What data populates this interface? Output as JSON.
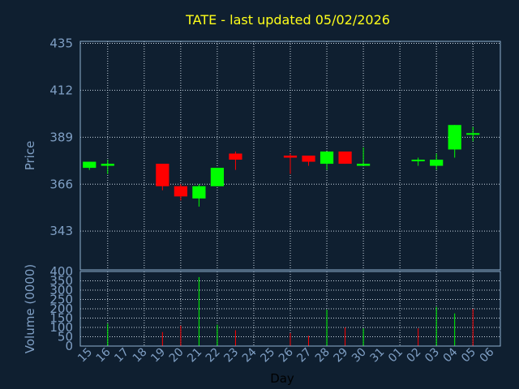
{
  "chart_data": {
    "type": "candlestick",
    "title": "TATE - last updated 05/02/2026",
    "xlabel": "Day",
    "ylabel_price": "Price",
    "ylabel_volume": "Volume (0000)",
    "x_ticks": [
      "15",
      "16",
      "17",
      "18",
      "19",
      "20",
      "21",
      "22",
      "23",
      "24",
      "25",
      "26",
      "27",
      "28",
      "29",
      "30",
      "31",
      "01",
      "02",
      "03",
      "04",
      "05",
      "06"
    ],
    "price_ticks": [
      343,
      366,
      389,
      412,
      435
    ],
    "price_ylim": [
      324,
      436
    ],
    "volume_ticks": [
      0,
      50,
      100,
      150,
      200,
      250,
      300,
      350,
      400
    ],
    "volume_ylim": [
      0,
      400
    ],
    "grid": true,
    "colors": {
      "up": "#00ff00",
      "down": "#ff0000",
      "grid": "#c8d4e0",
      "background": "#0f1f30"
    },
    "candles": [
      {
        "day": "15",
        "open": 374,
        "high": 377,
        "low": 373,
        "close": 377
      },
      {
        "day": "16",
        "open": 375,
        "high": 378,
        "low": 371,
        "close": 376
      },
      {
        "day": "19",
        "open": 376,
        "high": 376,
        "low": 363,
        "close": 365
      },
      {
        "day": "20",
        "open": 365,
        "high": 366,
        "low": 358,
        "close": 360
      },
      {
        "day": "21",
        "open": 359,
        "high": 366,
        "low": 355,
        "close": 365
      },
      {
        "day": "22",
        "open": 365,
        "high": 374,
        "low": 365,
        "close": 374
      },
      {
        "day": "23",
        "open": 381,
        "high": 382,
        "low": 373,
        "close": 378
      },
      {
        "day": "26",
        "open": 380,
        "high": 381,
        "low": 371,
        "close": 379
      },
      {
        "day": "27",
        "open": 380,
        "high": 380,
        "low": 375,
        "close": 377
      },
      {
        "day": "28",
        "open": 376,
        "high": 382,
        "low": 373,
        "close": 382
      },
      {
        "day": "29",
        "open": 382,
        "high": 382,
        "low": 376,
        "close": 376
      },
      {
        "day": "30",
        "open": 375,
        "high": 384,
        "low": 375,
        "close": 376
      },
      {
        "day": "02",
        "open": 378,
        "high": 379,
        "low": 375,
        "close": 378
      },
      {
        "day": "03",
        "open": 375,
        "high": 381,
        "low": 373,
        "close": 378
      },
      {
        "day": "04",
        "open": 383,
        "high": 395,
        "low": 379,
        "close": 395
      },
      {
        "day": "05",
        "open": 391,
        "high": 394,
        "low": 387,
        "close": 391
      }
    ],
    "volume": [
      {
        "day": "16",
        "value": 120,
        "dir": "up"
      },
      {
        "day": "19",
        "value": 75,
        "dir": "down"
      },
      {
        "day": "20",
        "value": 110,
        "dir": "down"
      },
      {
        "day": "21",
        "value": 370,
        "dir": "up"
      },
      {
        "day": "22",
        "value": 115,
        "dir": "up"
      },
      {
        "day": "23",
        "value": 85,
        "dir": "down"
      },
      {
        "day": "26",
        "value": 70,
        "dir": "down"
      },
      {
        "day": "27",
        "value": 55,
        "dir": "down"
      },
      {
        "day": "28",
        "value": 195,
        "dir": "up"
      },
      {
        "day": "29",
        "value": 100,
        "dir": "down"
      },
      {
        "day": "30",
        "value": 95,
        "dir": "up"
      },
      {
        "day": "02",
        "value": 95,
        "dir": "down"
      },
      {
        "day": "03",
        "value": 210,
        "dir": "up"
      },
      {
        "day": "04",
        "value": 175,
        "dir": "up"
      },
      {
        "day": "05",
        "value": 200,
        "dir": "down"
      }
    ]
  }
}
